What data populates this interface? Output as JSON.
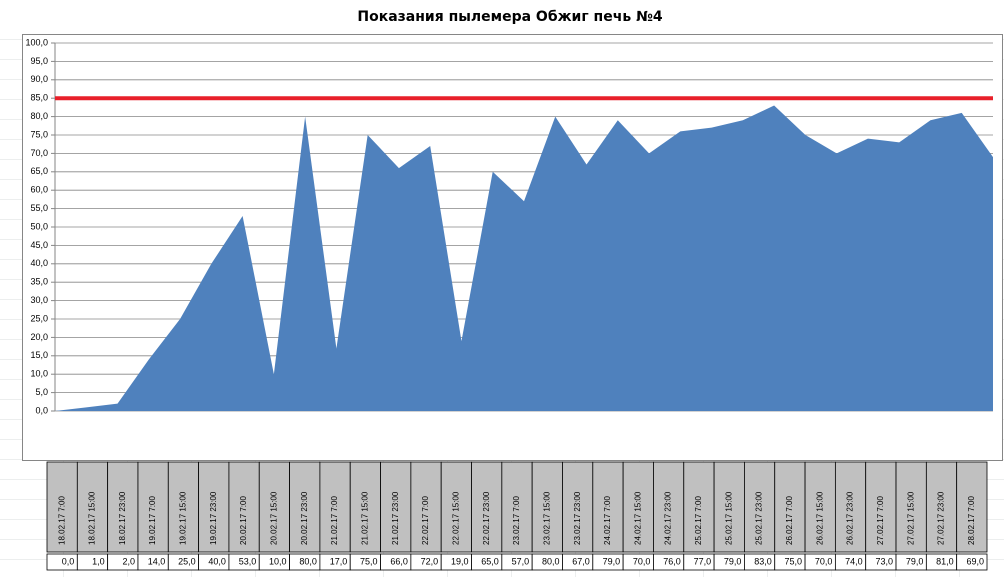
{
  "chart_data": {
    "type": "area",
    "title": "Показания пылемера Обжиг печь №4",
    "categories": [
      "18.02.17 7:00",
      "18.02.17 15:00",
      "18.02.17 23:00",
      "19.02.17 7:00",
      "19.02.17 15:00",
      "19.02.17 23:00",
      "20.02.17 7:00",
      "20.02.17 15:00",
      "20.02.17 23:00",
      "21.02.17 7:00",
      "21.02.17 15:00",
      "21.02.17 23:00",
      "22.02.17 7:00",
      "22.02.17 15:00",
      "22.02.17 23:00",
      "23.02.17 7:00",
      "23.02.17 15:00",
      "23.02.17 23:00",
      "24.02.17 7:00",
      "24.02.17 15:00",
      "24.02.17 23:00",
      "25.02.17 7:00",
      "25.02.17 15:00",
      "25.02.17 23:00",
      "26.02.17 7:00",
      "26.02.17 15:00",
      "26.02.17 23:00",
      "27.02.17 7:00",
      "27.02.17 15:00",
      "27.02.17 23:00",
      "28.02.17 7:00"
    ],
    "values": [
      0,
      1,
      2,
      14,
      25,
      40,
      53,
      10,
      80,
      17,
      75,
      66,
      72,
      19,
      65,
      57,
      80,
      67,
      79,
      70,
      76,
      77,
      79,
      83,
      75,
      70,
      74,
      73,
      79,
      81,
      69
    ],
    "value_labels": [
      "0,0",
      "1,0",
      "2,0",
      "14,0",
      "25,0",
      "40,0",
      "53,0",
      "10,0",
      "80,0",
      "17,0",
      "75,0",
      "66,0",
      "72,0",
      "19,0",
      "65,0",
      "57,0",
      "80,0",
      "67,0",
      "79,0",
      "70,0",
      "76,0",
      "77,0",
      "79,0",
      "83,0",
      "75,0",
      "70,0",
      "74,0",
      "73,0",
      "79,0",
      "81,0",
      "69,0"
    ],
    "color": "#4f81bd",
    "ylim": [
      0,
      100
    ],
    "yticks": [
      {
        "value": 0,
        "label": "0,0"
      },
      {
        "value": 5,
        "label": "5,0"
      },
      {
        "value": 10,
        "label": "10,0"
      },
      {
        "value": 15,
        "label": "15,0"
      },
      {
        "value": 20,
        "label": "20,0"
      },
      {
        "value": 25,
        "label": "25,0"
      },
      {
        "value": 30,
        "label": "30,0"
      },
      {
        "value": 35,
        "label": "35,0"
      },
      {
        "value": 40,
        "label": "40,0"
      },
      {
        "value": 45,
        "label": "45,0"
      },
      {
        "value": 50,
        "label": "50,0"
      },
      {
        "value": 55,
        "label": "55,0"
      },
      {
        "value": 60,
        "label": "60,0"
      },
      {
        "value": 65,
        "label": "65,0"
      },
      {
        "value": 70,
        "label": "70,0"
      },
      {
        "value": 75,
        "label": "75,0"
      },
      {
        "value": 80,
        "label": "80,0"
      },
      {
        "value": 85,
        "label": "85,0"
      },
      {
        "value": 90,
        "label": "90,0"
      },
      {
        "value": 95,
        "label": "95,0"
      },
      {
        "value": 100,
        "label": "100,0"
      }
    ],
    "grid": true,
    "threshold": {
      "value": 85,
      "color": "#e8202a"
    }
  }
}
